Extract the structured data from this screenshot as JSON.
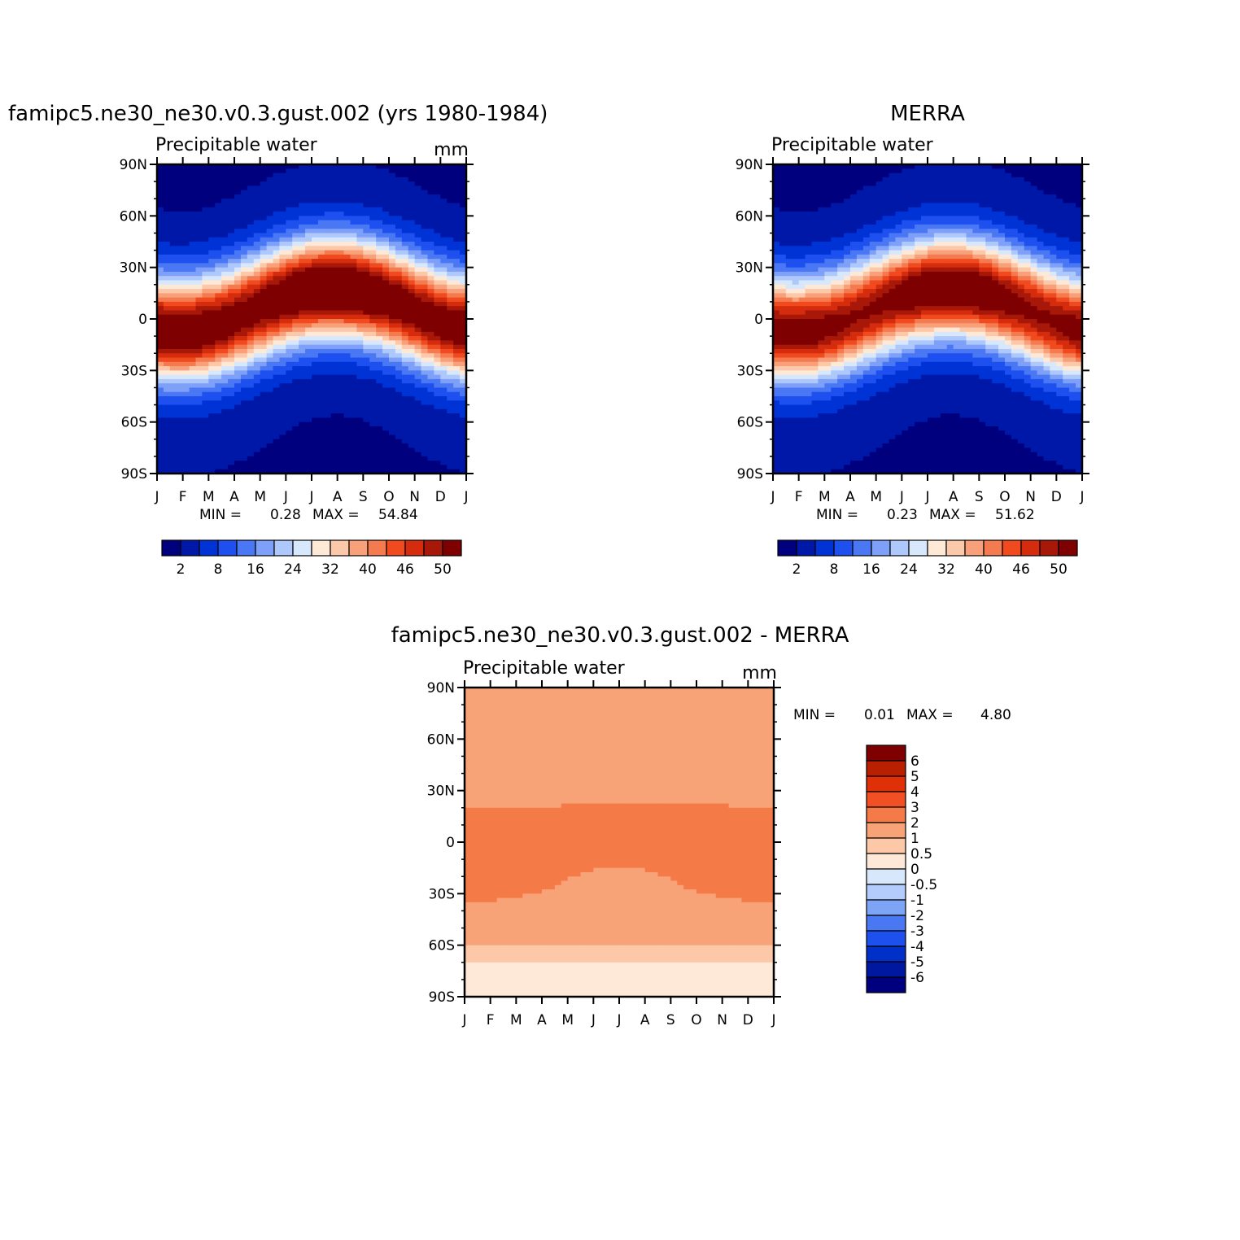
{
  "chart_data": [
    {
      "type": "heatmap",
      "title": "famipc5.ne30_ne30.v0.3.gust.002 (yrs 1980-1984)",
      "subtitle": "Precipitable water",
      "units": "mm",
      "x_ticks": [
        "J",
        "F",
        "M",
        "A",
        "M",
        "J",
        "J",
        "A",
        "S",
        "O",
        "N",
        "D",
        "J"
      ],
      "y_ticks": [
        "90N",
        "60N",
        "30N",
        "0",
        "30S",
        "60S",
        "90S"
      ],
      "y_values": [
        90,
        60,
        30,
        0,
        -30,
        -60,
        -90
      ],
      "stats": {
        "min_label": "MIN =",
        "min": "0.28",
        "max_label": "MAX =",
        "max": "54.84"
      },
      "peak": 54.8,
      "colorbar_labels": [
        "2",
        "8",
        "16",
        "24",
        "32",
        "40",
        "46",
        "50"
      ],
      "colorbar_colors": [
        "#00007f",
        "#0018a8",
        "#0033d6",
        "#1e50f0",
        "#4a78f4",
        "#7fa0f8",
        "#aec8fc",
        "#d8e8fc",
        "#fee8d6",
        "#fcc8aa",
        "#f8a07a",
        "#f47a50",
        "#f04a1e",
        "#d62c0e",
        "#a81808",
        "#7f0000"
      ]
    },
    {
      "type": "heatmap",
      "title": "MERRA",
      "subtitle": "Precipitable water",
      "x_ticks": [
        "J",
        "F",
        "M",
        "A",
        "M",
        "J",
        "J",
        "A",
        "S",
        "O",
        "N",
        "D",
        "J"
      ],
      "y_ticks": [
        "90N",
        "60N",
        "30N",
        "0",
        "30S",
        "60S",
        "90S"
      ],
      "y_values": [
        90,
        60,
        30,
        0,
        -30,
        -60,
        -90
      ],
      "stats": {
        "min_label": "MIN =",
        "min": "0.23",
        "max_label": "MAX =",
        "max": "51.62"
      },
      "peak": 51.6,
      "colorbar_labels": [
        "2",
        "8",
        "16",
        "24",
        "32",
        "40",
        "46",
        "50"
      ],
      "colorbar_colors": [
        "#00007f",
        "#0018a8",
        "#0033d6",
        "#1e50f0",
        "#4a78f4",
        "#7fa0f8",
        "#aec8fc",
        "#d8e8fc",
        "#fee8d6",
        "#fcc8aa",
        "#f8a07a",
        "#f47a50",
        "#f04a1e",
        "#d62c0e",
        "#a81808",
        "#7f0000"
      ]
    },
    {
      "type": "heatmap",
      "title": "famipc5.ne30_ne30.v0.3.gust.002 - MERRA",
      "subtitle": "Precipitable water",
      "units": "mm",
      "x_ticks": [
        "J",
        "F",
        "M",
        "A",
        "M",
        "J",
        "J",
        "A",
        "S",
        "O",
        "N",
        "D",
        "J"
      ],
      "y_ticks": [
        "90N",
        "60N",
        "30N",
        "0",
        "30S",
        "60S",
        "90S"
      ],
      "y_values": [
        90,
        60,
        30,
        0,
        -30,
        -60,
        -90
      ],
      "stats": {
        "min_label": "MIN =",
        "min": "0.01",
        "max_label": "MAX =",
        "max": "4.80"
      },
      "colorbar_labels": [
        "6",
        "5",
        "4",
        "3",
        "2",
        "1",
        "0.5",
        "0",
        "-0.5",
        "-1",
        "-2",
        "-3",
        "-4",
        "-5",
        "-6"
      ],
      "colorbar_colors": [
        "#7f0000",
        "#b82000",
        "#e03008",
        "#f05024",
        "#f47a48",
        "#f8a278",
        "#fcc8a8",
        "#fee8d8",
        "#d8e8fc",
        "#b4ccfc",
        "#7ea4f6",
        "#4a78f2",
        "#1e50ee",
        "#0030c8",
        "#0018a0",
        "#00007f"
      ]
    }
  ]
}
